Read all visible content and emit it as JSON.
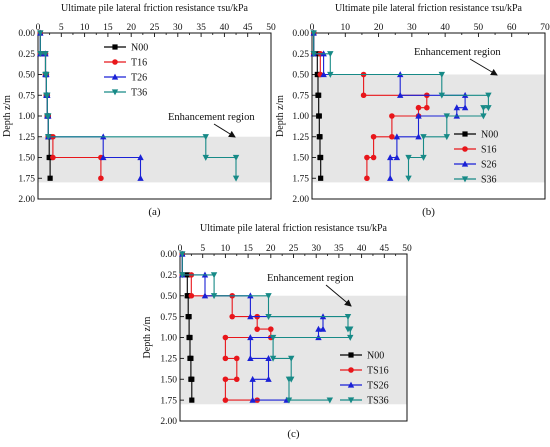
{
  "chart_data": [
    {
      "type": "line",
      "panel_label": "(a)",
      "title": "Ultimate pile lateral friction resistance τsu/kPa",
      "ylabel": "Depth z/m",
      "xlim": [
        0,
        50
      ],
      "ylim": [
        0,
        2
      ],
      "x_ticks": [
        "0",
        "5",
        "10",
        "15",
        "20",
        "25",
        "30",
        "35",
        "40",
        "45",
        "50"
      ],
      "y_ticks": [
        "0.00",
        "0.25",
        "0.50",
        "0.75",
        "1.00",
        "1.25",
        "1.50",
        "1.75",
        "2.00"
      ],
      "shaded_region": {
        "y_from": 1.25,
        "y_to": 1.8
      },
      "annotation": {
        "text": "Enhancement region"
      },
      "legend_position": "top-left",
      "series": [
        {
          "name": "N00",
          "color": "#000000",
          "marker": "square",
          "points": [
            [
              0.5,
              0
            ],
            [
              0.5,
              0.25
            ],
            [
              1.6,
              0.25
            ],
            [
              1.6,
              0.5
            ],
            [
              1.8,
              0.5
            ],
            [
              1.8,
              0.75
            ],
            [
              2.0,
              0.75
            ],
            [
              2.0,
              1.0
            ],
            [
              2.2,
              1.0
            ],
            [
              2.2,
              1.25
            ],
            [
              2.4,
              1.25
            ],
            [
              2.4,
              1.5
            ],
            [
              2.6,
              1.5
            ],
            [
              2.6,
              1.75
            ]
          ]
        },
        {
          "name": "T16",
          "color": "#e8161b",
          "marker": "circle",
          "points": [
            [
              0.5,
              0
            ],
            [
              0.5,
              0.25
            ],
            [
              1.6,
              0.25
            ],
            [
              1.6,
              0.5
            ],
            [
              1.8,
              0.5
            ],
            [
              1.8,
              0.75
            ],
            [
              2.0,
              0.75
            ],
            [
              2.0,
              1.0
            ],
            [
              2.2,
              1.0
            ],
            [
              2.2,
              1.25
            ],
            [
              3.2,
              1.25
            ],
            [
              3.2,
              1.5
            ],
            [
              13.5,
              1.5
            ],
            [
              13.5,
              1.75
            ]
          ]
        },
        {
          "name": "T26",
          "color": "#1a21d6",
          "marker": "triangle-up",
          "points": [
            [
              0.5,
              0
            ],
            [
              0.5,
              0.25
            ],
            [
              1.6,
              0.25
            ],
            [
              1.6,
              0.5
            ],
            [
              1.8,
              0.5
            ],
            [
              1.8,
              0.75
            ],
            [
              2.0,
              0.75
            ],
            [
              2.0,
              1.0
            ],
            [
              2.2,
              1.0
            ],
            [
              2.2,
              1.25
            ],
            [
              14.0,
              1.25
            ],
            [
              14.0,
              1.5
            ],
            [
              22.0,
              1.5
            ],
            [
              22.0,
              1.75
            ]
          ]
        },
        {
          "name": "T36",
          "color": "#178a87",
          "marker": "triangle-down",
          "points": [
            [
              0.5,
              0
            ],
            [
              0.5,
              0.25
            ],
            [
              1.6,
              0.25
            ],
            [
              1.6,
              0.5
            ],
            [
              1.8,
              0.5
            ],
            [
              1.8,
              0.75
            ],
            [
              2.0,
              0.75
            ],
            [
              2.0,
              1.0
            ],
            [
              2.2,
              1.0
            ],
            [
              2.2,
              1.25
            ],
            [
              36.0,
              1.25
            ],
            [
              36.0,
              1.5
            ],
            [
              42.5,
              1.5
            ],
            [
              42.5,
              1.75
            ]
          ]
        }
      ]
    },
    {
      "type": "line",
      "panel_label": "(b)",
      "title": "Ultimate pile lateral friction resistance τsu/kPa",
      "ylabel": "Depth z/m",
      "xlim": [
        0,
        70
      ],
      "ylim": [
        0,
        2
      ],
      "x_ticks": [
        "0",
        "10",
        "20",
        "30",
        "40",
        "50",
        "60",
        "70"
      ],
      "y_ticks": [
        "0.00",
        "0.25",
        "0.50",
        "0.75",
        "1.00",
        "1.25",
        "1.50",
        "1.75",
        "2.00"
      ],
      "shaded_region": {
        "y_from": 0.5,
        "y_to": 1.8
      },
      "annotation": {
        "text": "Enhancement region"
      },
      "legend_position": "bottom-right",
      "series": [
        {
          "name": "N00",
          "color": "#000000",
          "marker": "square",
          "points": [
            [
              0.5,
              0
            ],
            [
              0.5,
              0.25
            ],
            [
              1.6,
              0.25
            ],
            [
              1.6,
              0.5
            ],
            [
              1.8,
              0.5
            ],
            [
              1.8,
              0.75
            ],
            [
              2.0,
              0.75
            ],
            [
              2.0,
              1.0
            ],
            [
              2.2,
              1.0
            ],
            [
              2.2,
              1.25
            ],
            [
              2.4,
              1.25
            ],
            [
              2.4,
              1.5
            ],
            [
              2.6,
              1.5
            ],
            [
              2.6,
              1.75
            ]
          ]
        },
        {
          "name": "S16",
          "color": "#e8161b",
          "marker": "circle",
          "points": [
            [
              0.5,
              0
            ],
            [
              0.5,
              0.25
            ],
            [
              2.5,
              0.25
            ],
            [
              2.5,
              0.5
            ],
            [
              15.5,
              0.5
            ],
            [
              15.5,
              0.75
            ],
            [
              34.5,
              0.75
            ],
            [
              34.5,
              0.9
            ],
            [
              32.0,
              0.9
            ],
            [
              32.0,
              1.0
            ],
            [
              24.0,
              1.0
            ],
            [
              24.0,
              1.25
            ],
            [
              18.5,
              1.25
            ],
            [
              18.5,
              1.5
            ],
            [
              16.5,
              1.5
            ],
            [
              16.5,
              1.75
            ]
          ]
        },
        {
          "name": "S26",
          "color": "#1a21d6",
          "marker": "triangle-up",
          "points": [
            [
              0.5,
              0
            ],
            [
              0.5,
              0.25
            ],
            [
              3.5,
              0.25
            ],
            [
              3.5,
              0.5
            ],
            [
              26.5,
              0.5
            ],
            [
              26.5,
              0.75
            ],
            [
              46.0,
              0.75
            ],
            [
              46.0,
              0.9
            ],
            [
              43.5,
              0.9
            ],
            [
              43.5,
              1.0
            ],
            [
              32.0,
              1.0
            ],
            [
              32.0,
              1.25
            ],
            [
              25.5,
              1.25
            ],
            [
              25.5,
              1.5
            ],
            [
              23.5,
              1.5
            ],
            [
              23.5,
              1.75
            ]
          ]
        },
        {
          "name": "S36",
          "color": "#178a87",
          "marker": "triangle-down",
          "points": [
            [
              0.5,
              0
            ],
            [
              0.5,
              0.25
            ],
            [
              5.5,
              0.25
            ],
            [
              5.5,
              0.5
            ],
            [
              39.0,
              0.5
            ],
            [
              39.0,
              0.75
            ],
            [
              53.0,
              0.75
            ],
            [
              53.0,
              0.9
            ],
            [
              51.5,
              0.9
            ],
            [
              51.5,
              1.0
            ],
            [
              40.5,
              1.0
            ],
            [
              40.5,
              1.25
            ],
            [
              33.5,
              1.25
            ],
            [
              33.5,
              1.5
            ],
            [
              29.0,
              1.5
            ],
            [
              29.0,
              1.75
            ]
          ]
        }
      ]
    },
    {
      "type": "line",
      "panel_label": "(c)",
      "title": "Ultimate pile lateral friction resistance τsu/kPa",
      "ylabel": "Depth z/m",
      "xlim": [
        0,
        50
      ],
      "ylim": [
        0,
        2
      ],
      "x_ticks": [
        "0",
        "5",
        "10",
        "15",
        "20",
        "25",
        "30",
        "35",
        "40",
        "45",
        "50"
      ],
      "y_ticks": [
        "0.00",
        "0.25",
        "0.50",
        "0.75",
        "1.00",
        "1.25",
        "1.50",
        "1.75",
        "2.00"
      ],
      "shaded_region": {
        "y_from": 0.5,
        "y_to": 1.8
      },
      "annotation": {
        "text": "Enhancement region"
      },
      "legend_position": "bottom-right",
      "series": [
        {
          "name": "N00",
          "color": "#000000",
          "marker": "square",
          "points": [
            [
              0.5,
              0
            ],
            [
              0.5,
              0.25
            ],
            [
              1.6,
              0.25
            ],
            [
              1.6,
              0.5
            ],
            [
              1.8,
              0.5
            ],
            [
              1.8,
              0.75
            ],
            [
              2.0,
              0.75
            ],
            [
              2.0,
              1.0
            ],
            [
              2.2,
              1.0
            ],
            [
              2.2,
              1.25
            ],
            [
              2.4,
              1.25
            ],
            [
              2.4,
              1.5
            ],
            [
              2.6,
              1.5
            ],
            [
              2.6,
              1.75
            ]
          ]
        },
        {
          "name": "TS16",
          "color": "#e8161b",
          "marker": "circle",
          "points": [
            [
              0.5,
              0
            ],
            [
              0.5,
              0.25
            ],
            [
              2.5,
              0.25
            ],
            [
              2.5,
              0.5
            ],
            [
              11.5,
              0.5
            ],
            [
              11.5,
              0.75
            ],
            [
              17.0,
              0.75
            ],
            [
              17.0,
              0.9
            ],
            [
              20.0,
              0.9
            ],
            [
              20.0,
              1.0
            ],
            [
              10.0,
              1.0
            ],
            [
              10.0,
              1.25
            ],
            [
              12.5,
              1.25
            ],
            [
              12.5,
              1.5
            ],
            [
              10.0,
              1.5
            ],
            [
              10.0,
              1.75
            ],
            [
              17.0,
              1.75
            ]
          ]
        },
        {
          "name": "TS26",
          "color": "#1a21d6",
          "marker": "triangle-up",
          "points": [
            [
              0.5,
              0
            ],
            [
              0.5,
              0.25
            ],
            [
              5.5,
              0.25
            ],
            [
              5.5,
              0.5
            ],
            [
              15.5,
              0.5
            ],
            [
              15.5,
              0.75
            ],
            [
              31.5,
              0.75
            ],
            [
              31.5,
              0.9
            ],
            [
              30.5,
              0.9
            ],
            [
              30.5,
              1.0
            ],
            [
              15.5,
              1.0
            ],
            [
              15.5,
              1.25
            ],
            [
              19.5,
              1.25
            ],
            [
              19.5,
              1.5
            ],
            [
              16.0,
              1.5
            ],
            [
              16.0,
              1.75
            ],
            [
              23.5,
              1.75
            ]
          ]
        },
        {
          "name": "TS36",
          "color": "#178a87",
          "marker": "triangle-down",
          "points": [
            [
              0.5,
              0
            ],
            [
              0.5,
              0.25
            ],
            [
              7.5,
              0.25
            ],
            [
              7.5,
              0.5
            ],
            [
              19.5,
              0.5
            ],
            [
              19.5,
              0.75
            ],
            [
              37.0,
              0.75
            ],
            [
              37.0,
              0.9
            ],
            [
              37.5,
              0.9
            ],
            [
              37.5,
              1.0
            ],
            [
              20.5,
              1.0
            ],
            [
              20.5,
              1.25
            ],
            [
              24.5,
              1.25
            ],
            [
              24.5,
              1.5
            ],
            [
              24.0,
              1.5
            ],
            [
              24.0,
              1.75
            ],
            [
              33.0,
              1.75
            ]
          ]
        }
      ]
    }
  ]
}
